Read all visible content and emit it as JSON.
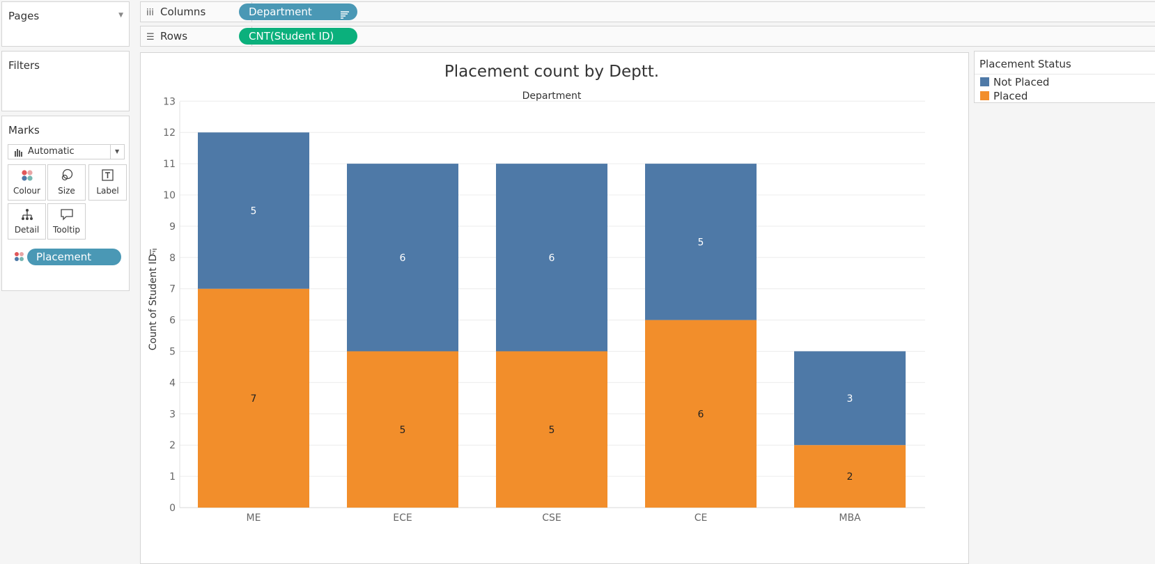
{
  "sidebar": {
    "pages_title": "Pages",
    "filters_title": "Filters",
    "marks_title": "Marks",
    "mark_type": "Automatic",
    "mark_buttons": [
      {
        "label": "Colour",
        "icon": "colour-icon"
      },
      {
        "label": "Size",
        "icon": "size-icon"
      },
      {
        "label": "Label",
        "icon": "label-icon"
      },
      {
        "label": "Detail",
        "icon": "detail-icon"
      },
      {
        "label": "Tooltip",
        "icon": "tooltip-icon"
      }
    ],
    "colour_pill": "Placement Stat.."
  },
  "shelves": {
    "columns_label": "Columns",
    "columns_pill": "Department",
    "rows_label": "Rows",
    "rows_pill": "CNT(Student ID)"
  },
  "legend": {
    "title": "Placement Status",
    "items": [
      {
        "label": "Not Placed",
        "color": "#4e79a7"
      },
      {
        "label": "Placed",
        "color": "#f28e2b"
      }
    ]
  },
  "colors": {
    "pill_blue": "#4a98b5",
    "pill_green": "#0bb07c",
    "not_placed": "#4e79a7",
    "placed": "#f28e2b"
  },
  "chart_data": {
    "type": "bar",
    "stacked": true,
    "title": "Placement count by Deptt.",
    "column_header": "Department",
    "ylabel": "Count of Student ID",
    "xlabel": "",
    "categories": [
      "ME",
      "ECE",
      "CSE",
      "CE",
      "MBA"
    ],
    "series": [
      {
        "name": "Placed",
        "values": [
          7,
          5,
          5,
          6,
          2
        ]
      },
      {
        "name": "Not Placed",
        "values": [
          5,
          6,
          6,
          5,
          3
        ]
      }
    ],
    "ylim": [
      0,
      13
    ],
    "yticks": [
      "0",
      "1",
      "2",
      "3",
      "4",
      "5",
      "6",
      "7",
      "8",
      "9",
      "10",
      "11",
      "12",
      "13"
    ],
    "grid": true,
    "legend_position": "right"
  }
}
